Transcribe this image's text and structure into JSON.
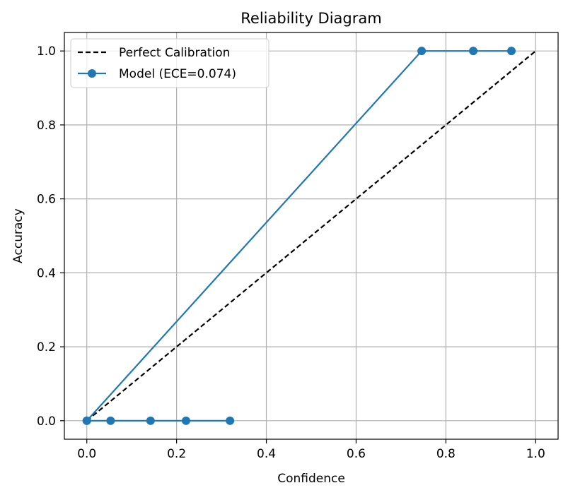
{
  "chart_data": {
    "type": "line",
    "title": "Reliability Diagram",
    "xlabel": "Confidence",
    "ylabel": "Accuracy",
    "xlim": [
      -0.05,
      1.05
    ],
    "ylim": [
      -0.05,
      1.05
    ],
    "xticks": [
      0.0,
      0.2,
      0.4,
      0.6,
      0.8,
      1.0
    ],
    "yticks": [
      0.0,
      0.2,
      0.4,
      0.6,
      0.8,
      1.0
    ],
    "xtick_labels": [
      "0.0",
      "0.2",
      "0.4",
      "0.6",
      "0.8",
      "1.0"
    ],
    "ytick_labels": [
      "0.0",
      "0.2",
      "0.4",
      "0.6",
      "0.8",
      "1.0"
    ],
    "grid": true,
    "legend_position": "top-left",
    "series": [
      {
        "name": "Perfect Calibration",
        "style": "dashed",
        "color": "#000000",
        "markers": false,
        "x": [
          0.0,
          1.0
        ],
        "y": [
          0.0,
          1.0
        ]
      },
      {
        "name": "Model (ECE=0.074)",
        "style": "solid",
        "color": "#1f77b4",
        "markers": true,
        "x": [
          0.0,
          0.0,
          0.053,
          0.142,
          0.221,
          0.319,
          0.0,
          0.746,
          0.861,
          0.946
        ],
        "y": [
          0.0,
          0.0,
          0.0,
          0.0,
          0.0,
          0.0,
          0.0,
          1.0,
          1.0,
          1.0
        ],
        "segments": [
          {
            "x": [
              0.0,
              0.053,
              0.142,
              0.221,
              0.319
            ],
            "y": [
              0.0,
              0.0,
              0.0,
              0.0,
              0.0
            ]
          },
          {
            "x": [
              0.0,
              0.746,
              0.861,
              0.946
            ],
            "y": [
              0.0,
              1.0,
              1.0,
              1.0
            ]
          }
        ]
      }
    ]
  }
}
